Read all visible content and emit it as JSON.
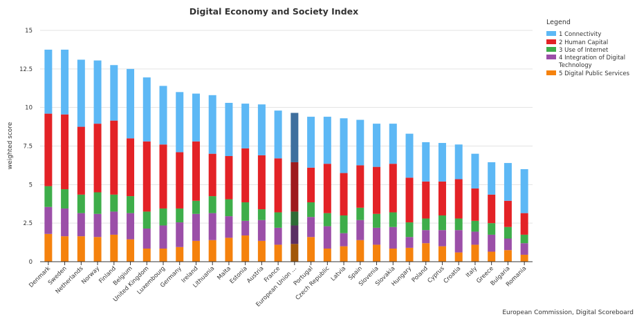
{
  "chart_data": {
    "type": "bar",
    "stacked": true,
    "title": "Digital Economy and Society Index",
    "ylabel": "weighted score",
    "ylim": [
      0,
      15
    ],
    "yticks": [
      "0",
      "2.5",
      "5",
      "7.5",
      "10",
      "12.5",
      "15"
    ],
    "grid": true,
    "legend": {
      "title": "Legend",
      "position": "right"
    },
    "source": "European Commission, Digital Scoreboard",
    "highlight_category": "European Union ...",
    "categories": [
      "Denmark",
      "Sweden",
      "Netherlands",
      "Norway",
      "Finland",
      "Belgium",
      "United Kingdom",
      "Luxembourg",
      "Germany",
      "Ireland",
      "Lithuania",
      "Malta",
      "Estonia",
      "Austria",
      "France",
      "European Union ...",
      "Portugal",
      "Czech Republic",
      "Latvia",
      "Spain",
      "Slovenia",
      "Slovakia",
      "Hungary",
      "Poland",
      "Cyprus",
      "Croatia",
      "Italy",
      "Greece",
      "Bulgaria",
      "Romania"
    ],
    "series": [
      {
        "name": "1 Connectivity",
        "color": "#5DB8F5",
        "highlight_color": "#3F6F9E",
        "values": [
          4.15,
          4.2,
          4.35,
          4.1,
          3.6,
          4.5,
          4.15,
          3.8,
          3.9,
          3.1,
          3.8,
          3.45,
          2.9,
          3.3,
          3.1,
          3.2,
          3.3,
          3.05,
          3.55,
          2.95,
          2.8,
          2.6,
          2.85,
          2.55,
          2.5,
          2.25,
          2.25,
          2.1,
          2.45,
          2.85
        ]
      },
      {
        "name": "2 Human Capital",
        "color": "#E32226",
        "highlight_color": "#9E1A1E",
        "values": [
          4.7,
          4.85,
          4.4,
          4.45,
          4.8,
          3.75,
          4.55,
          4.15,
          3.65,
          3.85,
          2.75,
          2.8,
          3.5,
          3.5,
          3.5,
          3.2,
          2.25,
          3.2,
          2.75,
          2.75,
          3.05,
          3.15,
          2.9,
          2.4,
          2.2,
          2.55,
          2.1,
          1.85,
          1.7,
          1.4
        ]
      },
      {
        "name": "3 Use of Internet",
        "color": "#3EAD4A",
        "highlight_color": "#2E6B36",
        "values": [
          1.35,
          1.25,
          1.2,
          1.4,
          1.1,
          1.1,
          1.1,
          1.1,
          0.9,
          0.85,
          1.1,
          1.1,
          1.2,
          0.7,
          1.0,
          0.9,
          0.95,
          0.85,
          1.15,
          0.8,
          0.9,
          0.95,
          0.95,
          0.75,
          0.95,
          0.75,
          0.7,
          0.75,
          0.75,
          0.55
        ]
      },
      {
        "name": "4 Integration of Digital Technology",
        "color": "#9B4FA8",
        "highlight_color": "#5A2F63",
        "values": [
          1.75,
          1.8,
          1.5,
          1.5,
          1.5,
          1.7,
          1.3,
          1.5,
          1.6,
          1.75,
          1.75,
          1.4,
          0.95,
          1.35,
          1.1,
          1.2,
          1.3,
          1.45,
          0.85,
          1.3,
          1.1,
          1.4,
          0.7,
          0.85,
          1.05,
          1.45,
          0.85,
          1.1,
          0.75,
          0.75
        ]
      },
      {
        "name": "5 Digital Public Services",
        "color": "#F5820D",
        "highlight_color": "#A25808",
        "values": [
          1.8,
          1.65,
          1.65,
          1.6,
          1.75,
          1.45,
          0.85,
          0.85,
          0.95,
          1.35,
          1.4,
          1.55,
          1.7,
          1.35,
          1.1,
          1.15,
          1.6,
          0.85,
          1.0,
          1.4,
          1.1,
          0.85,
          0.9,
          1.2,
          1.0,
          0.6,
          1.1,
          0.65,
          0.75,
          0.45
        ]
      }
    ]
  }
}
